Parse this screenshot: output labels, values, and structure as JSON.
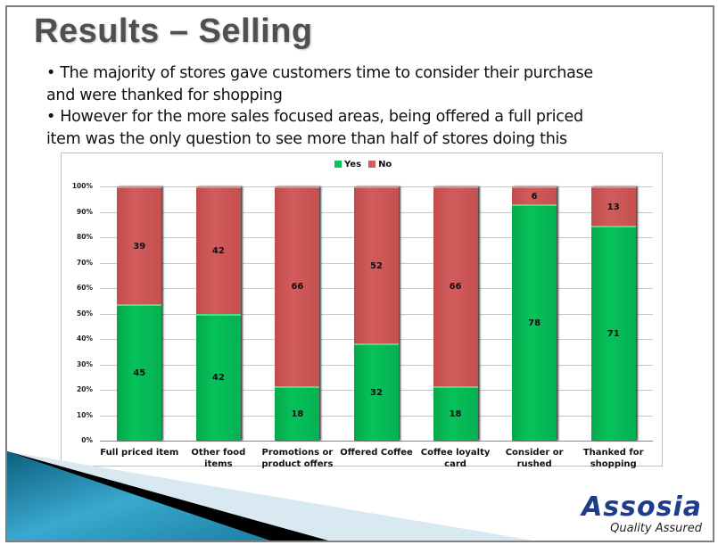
{
  "slide": {
    "title": "Results – Selling",
    "bullets": [
      "• The majority of stores gave customers time to consider their purchase",
      "and were thanked for shopping",
      "• However for the more sales focused areas, being offered a full priced",
      "item was the only question to see more than half of stores doing this"
    ]
  },
  "logo": {
    "name": "Assosia",
    "tagline": "Quality Assured"
  },
  "colors": {
    "yes": "#06c25a",
    "no": "#d25b5b",
    "logo": "#1e3c8c",
    "accent_orange": "#f08c1e",
    "deco_blue": "#2a8fb0"
  },
  "chart_data": {
    "type": "bar",
    "stacked": "percent",
    "title": "",
    "xlabel": "",
    "ylabel": "",
    "ylim": [
      0,
      100
    ],
    "yticks": [
      "0%",
      "10%",
      "20%",
      "30%",
      "40%",
      "50%",
      "60%",
      "70%",
      "80%",
      "90%",
      "100%"
    ],
    "grid": true,
    "legend_position": "top",
    "categories": [
      "Full priced item",
      "Other food items",
      "Promotions or product offers",
      "Offered Coffee",
      "Coffee loyalty card",
      "Consider or rushed",
      "Thanked for shopping"
    ],
    "series": [
      {
        "name": "Yes",
        "color": "#06c25a",
        "values": [
          45,
          42,
          18,
          32,
          18,
          78,
          71
        ]
      },
      {
        "name": "No",
        "color": "#d25b5b",
        "values": [
          39,
          42,
          66,
          52,
          66,
          6,
          13
        ]
      }
    ]
  }
}
